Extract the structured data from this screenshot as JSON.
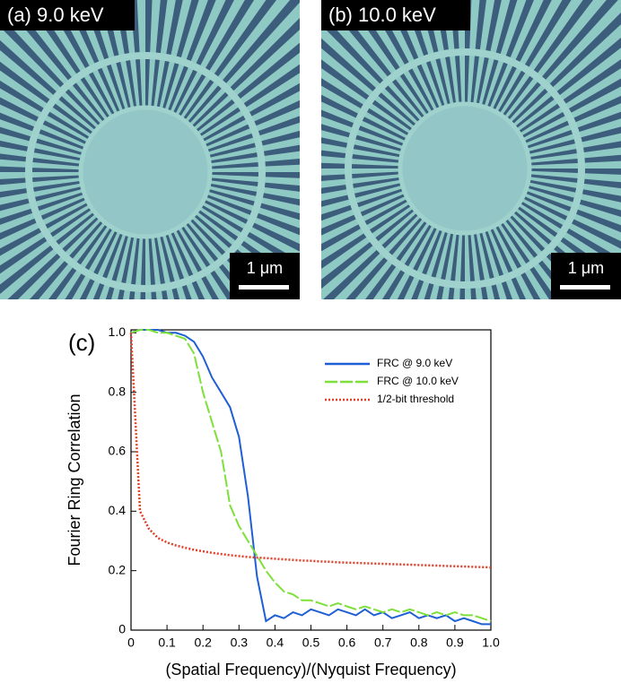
{
  "images": [
    {
      "label": "(a) 9.0 keV",
      "scale": "1 μm"
    },
    {
      "label": "(b) 10.0 keV",
      "scale": "1 μm"
    }
  ],
  "chart_data": {
    "type": "line",
    "panel_label": "(c)",
    "xlabel": "(Spatial Frequency)/(Nyquist Frequency)",
    "ylabel": "Fourier Ring Correlation",
    "xlim": [
      0,
      1
    ],
    "ylim": [
      0,
      1.01
    ],
    "xticks": [
      0,
      0.1,
      0.2,
      0.3,
      0.4,
      0.5,
      0.6,
      0.7,
      0.8,
      0.9,
      {
        "value": 1,
        "label": "1.0"
      }
    ],
    "yticks": [
      0,
      0.2,
      0.4,
      0.6,
      0.8,
      {
        "value": 1,
        "label": "1.0"
      }
    ],
    "legend": "upper right",
    "x": [
      0,
      0.025,
      0.05,
      0.075,
      0.1,
      0.125,
      0.15,
      0.175,
      0.2,
      0.225,
      0.25,
      0.275,
      0.3,
      0.325,
      0.35,
      0.375,
      0.4,
      0.425,
      0.45,
      0.475,
      0.5,
      0.525,
      0.55,
      0.575,
      0.6,
      0.625,
      0.65,
      0.675,
      0.7,
      0.725,
      0.75,
      0.775,
      0.8,
      0.825,
      0.85,
      0.875,
      0.9,
      0.925,
      0.95,
      0.975,
      1
    ],
    "series": [
      {
        "name": "FRC @ 9.0 keV",
        "color": "#1f5fd6",
        "style": "solid",
        "values": [
          1.0,
          1.01,
          1.01,
          1.01,
          1.0,
          1.0,
          0.99,
          0.97,
          0.92,
          0.85,
          0.8,
          0.75,
          0.65,
          0.45,
          0.18,
          0.03,
          0.05,
          0.04,
          0.06,
          0.05,
          0.07,
          0.06,
          0.05,
          0.07,
          0.06,
          0.05,
          0.07,
          0.05,
          0.06,
          0.04,
          0.05,
          0.06,
          0.04,
          0.05,
          0.04,
          0.05,
          0.03,
          0.04,
          0.03,
          0.02,
          0.02
        ]
      },
      {
        "name": "FRC @ 10.0 keV",
        "color": "#7ee03a",
        "style": "dashed",
        "values": [
          1.0,
          1.01,
          1.01,
          1.0,
          1.0,
          0.99,
          0.98,
          0.93,
          0.8,
          0.7,
          0.6,
          0.42,
          0.35,
          0.3,
          0.25,
          0.2,
          0.16,
          0.13,
          0.12,
          0.1,
          0.1,
          0.09,
          0.08,
          0.09,
          0.08,
          0.07,
          0.08,
          0.07,
          0.06,
          0.07,
          0.06,
          0.07,
          0.06,
          0.05,
          0.06,
          0.05,
          0.06,
          0.05,
          0.05,
          0.04,
          0.03
        ]
      },
      {
        "name": "1/2-bit threshold",
        "color": "#e0402a",
        "style": "dotted",
        "values": [
          1.0,
          0.4,
          0.34,
          0.31,
          0.295,
          0.285,
          0.277,
          0.27,
          0.265,
          0.26,
          0.256,
          0.252,
          0.249,
          0.246,
          0.244,
          0.242,
          0.24,
          0.238,
          0.236,
          0.234,
          0.233,
          0.231,
          0.23,
          0.228,
          0.227,
          0.226,
          0.225,
          0.224,
          0.223,
          0.222,
          0.221,
          0.22,
          0.219,
          0.218,
          0.217,
          0.216,
          0.215,
          0.214,
          0.213,
          0.212,
          0.211
        ]
      }
    ]
  }
}
